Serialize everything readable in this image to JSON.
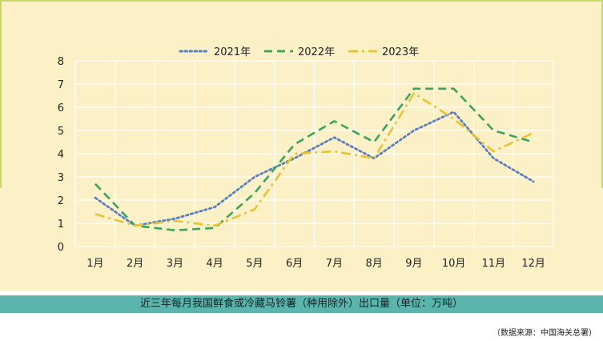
{
  "chart_data": {
    "type": "line",
    "categories": [
      "1月",
      "2月",
      "3月",
      "4月",
      "5月",
      "6月",
      "7月",
      "8月",
      "9月",
      "10月",
      "11月",
      "12月"
    ],
    "ylim": [
      0,
      8
    ],
    "yticks": [
      0,
      1,
      2,
      3,
      4,
      5,
      6,
      7,
      8
    ],
    "grid": true,
    "legend_position": "top-center",
    "series": [
      {
        "name": "2021年",
        "color": "#5b7fbe",
        "dash": "dotted",
        "values": [
          2.1,
          0.9,
          1.2,
          1.7,
          3.0,
          3.8,
          4.7,
          3.8,
          5.0,
          5.8,
          3.8,
          2.8
        ]
      },
      {
        "name": "2022年",
        "color": "#3aa35e",
        "dash": "dashed",
        "values": [
          2.7,
          0.9,
          0.7,
          0.8,
          2.3,
          4.4,
          5.4,
          4.5,
          6.8,
          6.8,
          5.0,
          4.5
        ]
      },
      {
        "name": "2023年",
        "color": "#e8c233",
        "dash": "dashdot",
        "values": [
          1.4,
          0.9,
          1.1,
          0.9,
          1.6,
          4.0,
          4.1,
          3.8,
          6.6,
          5.5,
          4.1,
          4.9
        ]
      }
    ]
  },
  "caption": "近三年每月我国鲜食或冷藏马铃薯（种用除外）出口量（单位：万吨）",
  "source": "（数据来源：中国海关总署）",
  "colors": {
    "panel_bg": "#fcf0c6",
    "grid": "#ffffff",
    "caption_bg": "#5bb5ac"
  }
}
